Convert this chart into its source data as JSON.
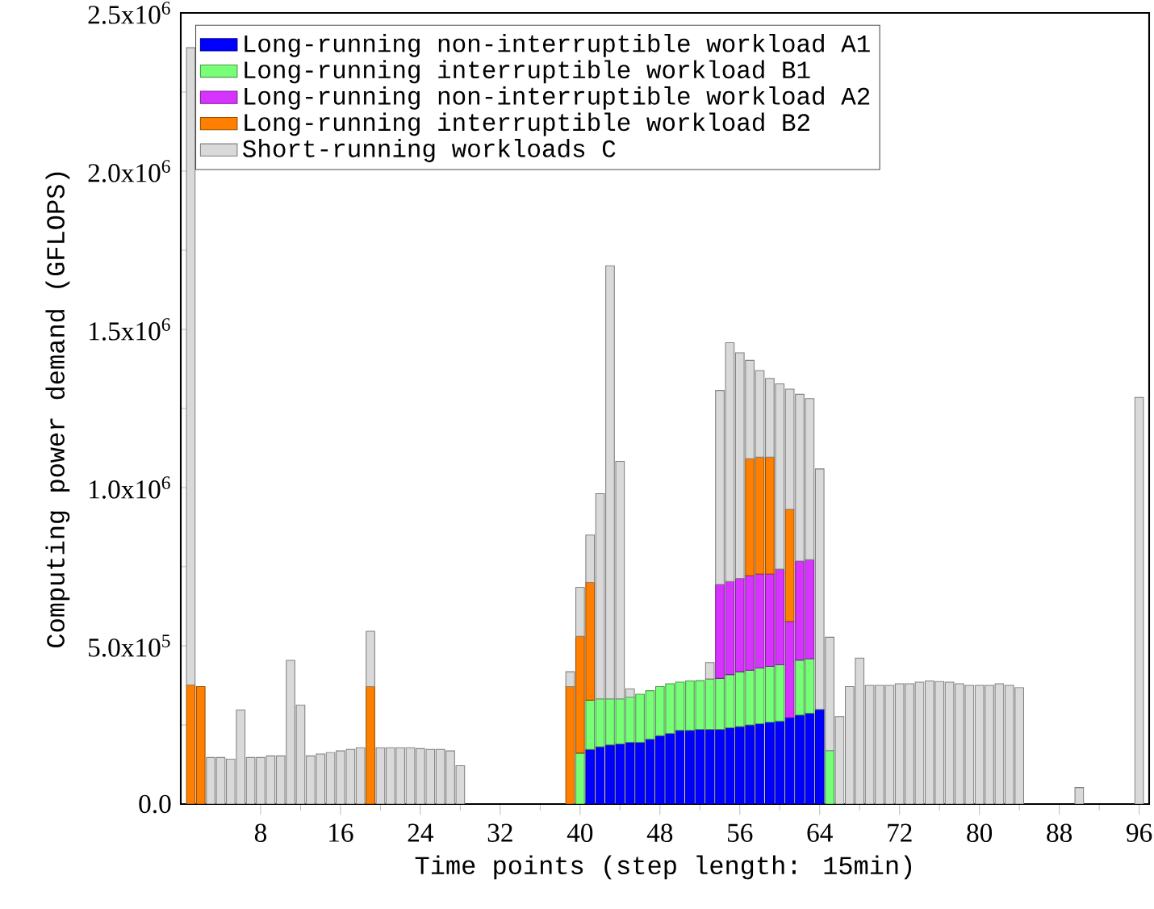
{
  "chart_data": {
    "type": "bar",
    "stacked": true,
    "xlabel": "Time points (step length: 15min)",
    "ylabel": "Computing power demand (GFLOPS)",
    "x": [
      1,
      2,
      3,
      4,
      5,
      6,
      7,
      8,
      9,
      10,
      11,
      12,
      13,
      14,
      15,
      16,
      17,
      18,
      19,
      20,
      21,
      22,
      23,
      24,
      25,
      26,
      27,
      28,
      29,
      30,
      31,
      32,
      33,
      34,
      35,
      36,
      37,
      38,
      39,
      40,
      41,
      42,
      43,
      44,
      45,
      46,
      47,
      48,
      49,
      50,
      51,
      52,
      53,
      54,
      55,
      56,
      57,
      58,
      59,
      60,
      61,
      62,
      63,
      64,
      65,
      66,
      67,
      68,
      69,
      70,
      71,
      72,
      73,
      74,
      75,
      76,
      77,
      78,
      79,
      80,
      81,
      82,
      83,
      84,
      85,
      86,
      87,
      88,
      89,
      90,
      91,
      92,
      93,
      94,
      95,
      96
    ],
    "xlim": [
      0,
      97
    ],
    "xticks": [
      8,
      16,
      24,
      32,
      40,
      48,
      56,
      64,
      72,
      80,
      88,
      96
    ],
    "ylim": [
      0,
      2500000
    ],
    "yticks": [
      {
        "value": 0,
        "label": "0.0"
      },
      {
        "value": 500000,
        "label": "5.0x10$^{5}$"
      },
      {
        "value": 1000000,
        "label": "1.0x10$^{6}$"
      },
      {
        "value": 1500000,
        "label": "1.5x10$^{6}$"
      },
      {
        "value": 2000000,
        "label": "2.0x10$^{6}$"
      },
      {
        "value": 2500000,
        "label": "2.5x10$^{6}$"
      }
    ],
    "legend": "top left",
    "series": [
      {
        "name": "Long-running non-interruptible workload A1",
        "color": "#0000ff",
        "values": [
          null,
          null,
          null,
          null,
          null,
          null,
          null,
          null,
          null,
          null,
          null,
          null,
          null,
          null,
          null,
          null,
          null,
          null,
          null,
          null,
          null,
          null,
          null,
          null,
          null,
          null,
          null,
          null,
          null,
          null,
          null,
          null,
          null,
          null,
          null,
          null,
          null,
          null,
          null,
          null,
          173000,
          181000,
          187000,
          190000,
          195000,
          195000,
          205000,
          216000,
          223000,
          233000,
          233000,
          236000,
          236000,
          236000,
          241000,
          245000,
          250000,
          254000,
          259000,
          262000,
          273000,
          281000,
          287000,
          299000,
          null,
          null,
          null,
          null,
          null,
          null,
          null,
          null,
          null,
          null,
          null,
          null,
          null,
          null,
          null,
          null,
          null,
          null,
          null,
          null,
          null,
          null,
          null,
          null,
          null,
          null,
          null,
          null,
          null,
          null,
          null,
          null
        ]
      },
      {
        "name": "Long-running interruptible workload B1",
        "color": "#77ff77",
        "values": [
          null,
          null,
          null,
          null,
          null,
          null,
          null,
          null,
          null,
          null,
          null,
          null,
          null,
          null,
          null,
          null,
          null,
          null,
          null,
          null,
          null,
          null,
          null,
          null,
          null,
          null,
          null,
          null,
          null,
          null,
          null,
          null,
          null,
          null,
          null,
          null,
          null,
          null,
          null,
          161000,
          155000,
          151000,
          145000,
          142000,
          143000,
          152000,
          153000,
          155000,
          157000,
          152000,
          156000,
          154000,
          159000,
          161000,
          168000,
          173000,
          173000,
          176000,
          176000,
          178000,
          null,
          174000,
          172000,
          null,
          169000,
          null,
          null,
          null,
          null,
          null,
          null,
          null,
          null,
          null,
          null,
          null,
          null,
          null,
          null,
          null,
          null,
          null,
          null,
          null,
          null,
          null,
          null,
          null,
          null,
          null,
          null,
          null,
          null,
          null,
          null,
          null
        ]
      },
      {
        "name": "Long-running non-interruptible workload A2",
        "color": "#d633ff",
        "values": [
          null,
          null,
          null,
          null,
          null,
          null,
          null,
          null,
          null,
          null,
          null,
          null,
          null,
          null,
          null,
          null,
          null,
          null,
          null,
          null,
          null,
          null,
          null,
          null,
          null,
          null,
          null,
          null,
          null,
          null,
          null,
          null,
          null,
          null,
          null,
          null,
          null,
          null,
          null,
          null,
          null,
          null,
          null,
          null,
          null,
          null,
          null,
          null,
          null,
          null,
          null,
          null,
          null,
          297000,
          294000,
          295000,
          299000,
          297000,
          292000,
          302000,
          304000,
          313000,
          313000,
          null,
          null,
          null,
          null,
          null,
          null,
          null,
          null,
          null,
          null,
          null,
          null,
          null,
          null,
          null,
          null,
          null,
          null,
          null,
          null,
          null,
          null,
          null,
          null,
          null,
          null,
          null,
          null,
          null,
          null,
          null,
          null,
          null
        ]
      },
      {
        "name": "Long-running interruptible workload B2",
        "color": "#ff8000",
        "values": [
          376000,
          371000,
          null,
          null,
          null,
          null,
          null,
          null,
          null,
          null,
          null,
          null,
          null,
          null,
          null,
          null,
          null,
          null,
          371000,
          null,
          null,
          null,
          null,
          null,
          null,
          null,
          null,
          null,
          null,
          null,
          null,
          null,
          null,
          null,
          null,
          null,
          null,
          null,
          371000,
          369000,
          372000,
          null,
          null,
          null,
          null,
          null,
          null,
          null,
          null,
          null,
          null,
          null,
          null,
          null,
          null,
          null,
          369000,
          369000,
          369000,
          null,
          354000,
          null,
          null,
          null,
          null,
          null,
          null,
          null,
          null,
          null,
          null,
          null,
          null,
          null,
          null,
          null,
          null,
          null,
          null,
          null,
          null,
          null,
          null,
          null,
          null,
          null,
          null,
          null,
          null,
          null,
          null,
          null,
          null,
          null,
          null,
          null
        ]
      },
      {
        "name": "Short-running workloads C",
        "color": "#d9d9d9",
        "values": [
          2014000,
          null,
          147000,
          147000,
          142000,
          297000,
          147000,
          147000,
          152000,
          152000,
          454000,
          313000,
          152000,
          158000,
          163000,
          168000,
          173000,
          178000,
          175000,
          178000,
          178000,
          178000,
          178000,
          175000,
          173000,
          173000,
          168000,
          121000,
          null,
          null,
          null,
          null,
          null,
          null,
          null,
          null,
          null,
          null,
          47000,
          155000,
          150000,
          649000,
          1369000,
          751000,
          26000,
          null,
          null,
          null,
          null,
          null,
          null,
          null,
          52000,
          613000,
          755000,
          713000,
          311000,
          274000,
          249000,
          586000,
          380000,
          527000,
          509000,
          760000,
          358000,
          276000,
          371000,
          461000,
          375000,
          375000,
          375000,
          380000,
          380000,
          385000,
          389000,
          387000,
          385000,
          380000,
          375000,
          375000,
          375000,
          380000,
          375000,
          368000,
          null,
          null,
          null,
          null,
          null,
          52000,
          null,
          null,
          null,
          null,
          null,
          1285000
        ]
      }
    ]
  }
}
